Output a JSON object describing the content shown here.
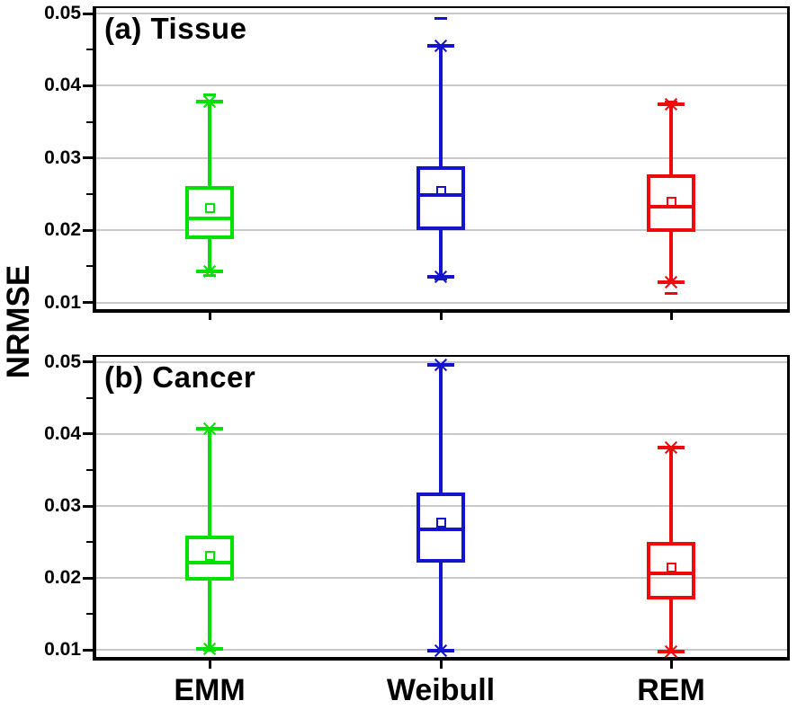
{
  "figure": {
    "ylabel": "NRMSE",
    "x_categories": [
      "EMM",
      "Weibull",
      "REM"
    ],
    "background": "#ffffff",
    "gridline_color": "#c9c9c9",
    "frame_color": "#000000"
  },
  "chart_data": [
    {
      "type": "box",
      "panel": "a",
      "title": "(a) Tissue",
      "ylabel": "NRMSE",
      "grid": "horizontal-major",
      "legend_position": "none",
      "categories": [
        "EMM",
        "Weibull",
        "REM"
      ],
      "ytick_labels": [
        "0.05",
        "0.04",
        "0.03",
        "0.02",
        "0.01"
      ],
      "yticks": [
        0.05,
        0.04,
        0.03,
        0.02,
        0.01
      ],
      "minor_yticks": [
        0.045,
        0.035,
        0.025,
        0.015
      ],
      "ylim": [
        0.0094,
        0.0511
      ],
      "series": [
        {
          "name": "EMM",
          "color": "#00E100",
          "stats": {
            "max": 0.0388,
            "whisker_high": 0.0378,
            "q3": 0.0261,
            "mean": 0.0231,
            "median": 0.0216,
            "q1": 0.0188,
            "whisker_low": 0.0143,
            "min": 0.0137
          }
        },
        {
          "name": "Weibull",
          "color": "#1414CC",
          "stats": {
            "max": 0.0493,
            "whisker_high": 0.0455,
            "q3": 0.0289,
            "mean": 0.0255,
            "median": 0.0249,
            "q1": 0.02,
            "whisker_low": 0.0136,
            "min": 0.0132
          }
        },
        {
          "name": "REM",
          "color": "#EE0A0A",
          "stats": {
            "max": 0.0377,
            "whisker_high": 0.0374,
            "q3": 0.0277,
            "mean": 0.024,
            "median": 0.0233,
            "q1": 0.0198,
            "whisker_low": 0.0128,
            "min": 0.0113
          }
        }
      ]
    },
    {
      "type": "box",
      "panel": "b",
      "title": "(b) Cancer",
      "ylabel": "NRMSE",
      "grid": "horizontal-major",
      "legend_position": "none",
      "categories": [
        "EMM",
        "Weibull",
        "REM"
      ],
      "ytick_labels": [
        "0.05",
        "0.04",
        "0.03",
        "0.02",
        "0.01"
      ],
      "yticks": [
        0.05,
        0.04,
        0.03,
        0.02,
        0.01
      ],
      "minor_yticks": [
        0.045,
        0.035,
        0.025,
        0.015
      ],
      "ylim": [
        0.0094,
        0.0511
      ],
      "series": [
        {
          "name": "EMM",
          "color": "#00E100",
          "stats": {
            "max": 0.0408,
            "whisker_high": 0.0407,
            "q3": 0.0259,
            "mean": 0.0231,
            "median": 0.0222,
            "q1": 0.0197,
            "whisker_low": 0.0101,
            "min": 0.01
          }
        },
        {
          "name": "Weibull",
          "color": "#1414CC",
          "stats": {
            "max": 0.0497,
            "whisker_high": 0.0496,
            "q3": 0.0319,
            "mean": 0.0277,
            "median": 0.0267,
            "q1": 0.0222,
            "whisker_low": 0.0099,
            "min": 0.0098
          }
        },
        {
          "name": "REM",
          "color": "#EE0A0A",
          "stats": {
            "max": 0.0382,
            "whisker_high": 0.0381,
            "q3": 0.025,
            "mean": 0.0215,
            "median": 0.0207,
            "q1": 0.017,
            "whisker_low": 0.0098,
            "min": 0.0097
          }
        }
      ]
    }
  ]
}
